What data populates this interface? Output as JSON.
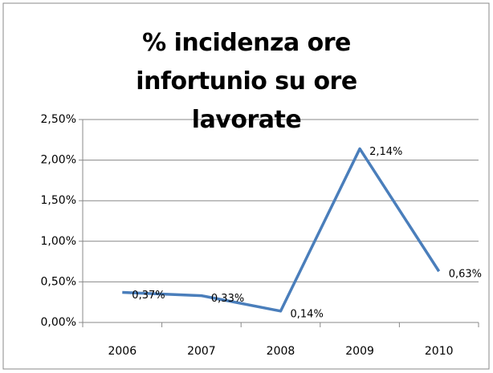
{
  "chart_data": {
    "type": "line",
    "title": "% incidenza ore infortunio su ore lavorate",
    "categories": [
      "2006",
      "2007",
      "2008",
      "2009",
      "2010"
    ],
    "series": [
      {
        "color": "#4a7ebb",
        "values": [
          0.37,
          0.33,
          0.14,
          2.14,
          0.63
        ],
        "value_labels": [
          "0,37%",
          "0,33%",
          "0,14%",
          "2,14%",
          "0,63%"
        ]
      }
    ],
    "ylim": [
      0,
      2.5
    ],
    "yticks": [
      {
        "value": 0,
        "label": "0,00%"
      },
      {
        "value": 0.5,
        "label": "0,50%"
      },
      {
        "value": 1,
        "label": "1,00%"
      },
      {
        "value": 1.5,
        "label": "1,50%"
      },
      {
        "value": 2,
        "label": "2,00%"
      },
      {
        "value": 2.5,
        "label": "2,50%"
      }
    ],
    "grid": true
  }
}
